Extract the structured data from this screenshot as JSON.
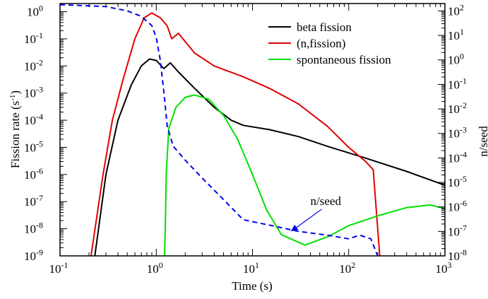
{
  "chart_data": {
    "type": "line",
    "xlabel": "Time (s)",
    "ylabel_left": "Fission rate (s",
    "ylabel_left_sup": "-1",
    "ylabel_left_close": ")",
    "ylabel_right": "n/seed",
    "x_scale": "log",
    "y_left_scale": "log",
    "y_right_scale": "log",
    "xlim": [
      0.1,
      1000
    ],
    "ylim_left": [
      1e-09,
      2
    ],
    "ylim_right": [
      1e-08,
      200
    ],
    "grid": false,
    "legend_position": "top-right",
    "x_ticks": [
      {
        "base": "10",
        "exp": "-1"
      },
      {
        "base": "10",
        "exp": "0"
      },
      {
        "base": "10",
        "exp": "1"
      },
      {
        "base": "10",
        "exp": "2"
      },
      {
        "base": "10",
        "exp": "3"
      }
    ],
    "y_left_ticks": [
      {
        "base": "10",
        "exp": "0"
      },
      {
        "base": "10",
        "exp": "-1"
      },
      {
        "base": "10",
        "exp": "-2"
      },
      {
        "base": "10",
        "exp": "-3"
      },
      {
        "base": "10",
        "exp": "-4"
      },
      {
        "base": "10",
        "exp": "-5"
      },
      {
        "base": "10",
        "exp": "-6"
      },
      {
        "base": "10",
        "exp": "-7"
      },
      {
        "base": "10",
        "exp": "-8"
      },
      {
        "base": "10",
        "exp": "-9"
      }
    ],
    "y_right_ticks": [
      {
        "base": "10",
        "exp": "2"
      },
      {
        "base": "10",
        "exp": "1"
      },
      {
        "base": "10",
        "exp": "0"
      },
      {
        "base": "10",
        "exp": "-1"
      },
      {
        "base": "10",
        "exp": "-2"
      },
      {
        "base": "10",
        "exp": "-3"
      },
      {
        "base": "10",
        "exp": "-4"
      },
      {
        "base": "10",
        "exp": "-5"
      },
      {
        "base": "10",
        "exp": "-6"
      },
      {
        "base": "10",
        "exp": "-7"
      },
      {
        "base": "10",
        "exp": "-8"
      }
    ],
    "series": [
      {
        "name": "beta fission",
        "color": "#000000",
        "axis": "left",
        "dash": false,
        "points": [
          [
            0.23,
            1e-09
          ],
          [
            0.3,
            1e-06
          ],
          [
            0.4,
            0.0001
          ],
          [
            0.55,
            0.002
          ],
          [
            0.7,
            0.01
          ],
          [
            0.85,
            0.018
          ],
          [
            1.0,
            0.016
          ],
          [
            1.2,
            0.008
          ],
          [
            1.4,
            0.013
          ],
          [
            1.7,
            0.006
          ],
          [
            2.5,
            0.0015
          ],
          [
            4,
            0.0003
          ],
          [
            6,
            0.0001
          ],
          [
            8,
            6.5e-05
          ],
          [
            15,
            4.5e-05
          ],
          [
            30,
            2.5e-05
          ],
          [
            60,
            1.1e-05
          ],
          [
            150,
            4e-06
          ],
          [
            400,
            1.3e-06
          ],
          [
            1000,
            4e-07
          ]
        ]
      },
      {
        "name": "(n,fission)",
        "color": "#e00000",
        "axis": "left",
        "dash": false,
        "points": [
          [
            0.21,
            1e-09
          ],
          [
            0.28,
            1e-06
          ],
          [
            0.35,
            0.0001
          ],
          [
            0.45,
            0.003
          ],
          [
            0.6,
            0.1
          ],
          [
            0.75,
            0.6
          ],
          [
            0.9,
            0.9
          ],
          [
            1.1,
            0.6
          ],
          [
            1.3,
            0.3
          ],
          [
            1.45,
            0.1
          ],
          [
            1.7,
            0.16
          ],
          [
            2.5,
            0.03
          ],
          [
            4,
            0.01
          ],
          [
            8,
            0.004
          ],
          [
            15,
            0.0015
          ],
          [
            30,
            0.0004
          ],
          [
            60,
            6e-05
          ],
          [
            100,
            1e-05
          ],
          [
            150,
            3e-06
          ],
          [
            180,
            1.5e-06
          ],
          [
            200,
            1e-08
          ],
          [
            210,
            1e-09
          ]
        ]
      },
      {
        "name": "spontaneous fission",
        "color": "#00e000",
        "axis": "left",
        "dash": false,
        "points": [
          [
            1.22,
            1e-09
          ],
          [
            1.24,
            1e-08
          ],
          [
            1.27,
            1e-06
          ],
          [
            1.35,
            5e-05
          ],
          [
            1.6,
            0.0003
          ],
          [
            2,
            0.0007
          ],
          [
            2.5,
            0.00085
          ],
          [
            3.5,
            0.0006
          ],
          [
            5,
            0.00015
          ],
          [
            7,
            2e-05
          ],
          [
            10,
            1e-06
          ],
          [
            14,
            5e-08
          ],
          [
            20,
            6e-09
          ],
          [
            35,
            2.5e-09
          ],
          [
            60,
            5e-09
          ],
          [
            100,
            1.3e-08
          ],
          [
            200,
            3e-08
          ],
          [
            400,
            6e-08
          ],
          [
            700,
            7.5e-08
          ],
          [
            1000,
            5.5e-08
          ]
        ]
      },
      {
        "name": "n/seed",
        "color": "#0000ee",
        "axis": "right",
        "dash": true,
        "points": [
          [
            0.1,
            180
          ],
          [
            0.3,
            150
          ],
          [
            0.5,
            100
          ],
          [
            0.7,
            60
          ],
          [
            0.9,
            25
          ],
          [
            1.0,
            8
          ],
          [
            1.1,
            1
          ],
          [
            1.2,
            0.05
          ],
          [
            1.3,
            0.002
          ],
          [
            1.5,
            0.0003
          ],
          [
            2,
            8e-05
          ],
          [
            3,
            1.5e-05
          ],
          [
            5,
            2e-06
          ],
          [
            8,
            3e-07
          ],
          [
            15,
            1.8e-07
          ],
          [
            30,
            1e-07
          ],
          [
            60,
            7e-08
          ],
          [
            100,
            5e-08
          ],
          [
            130,
            7e-08
          ],
          [
            170,
            5e-08
          ],
          [
            200,
            1e-08
          ]
        ]
      }
    ],
    "annotation": {
      "text": "n/seed",
      "color": "#0000ee",
      "x": 25,
      "y_right": 1e-07,
      "text_x": 60,
      "text_y_right": 1.2e-06
    }
  }
}
